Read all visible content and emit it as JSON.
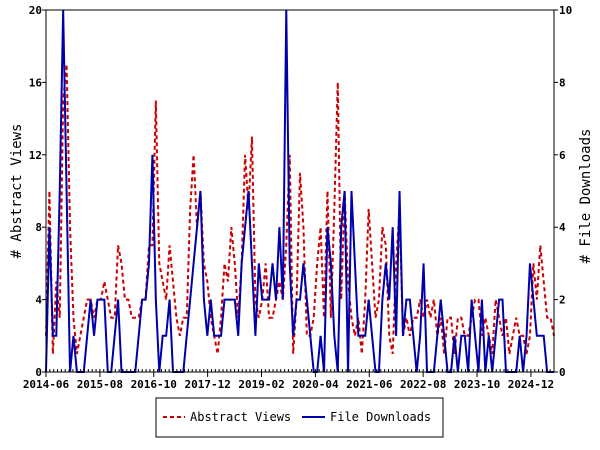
{
  "chart_data": {
    "type": "line",
    "x_tick_labels": [
      "2014-06",
      "2015-08",
      "2016-10",
      "2017-12",
      "2019-02",
      "2020-04",
      "2021-06",
      "2022-08",
      "2023-10",
      "2024-12"
    ],
    "x_range": [
      "2014-06",
      "2025-06"
    ],
    "y_left": {
      "label": "# Abstract Views",
      "range": [
        0,
        20
      ],
      "ticks": [
        0,
        4,
        8,
        12,
        16,
        20
      ]
    },
    "y_right": {
      "label": "# File Downloads",
      "range": [
        0,
        10
      ],
      "ticks": [
        0,
        2,
        4,
        6,
        8,
        10
      ]
    },
    "colors": {
      "abstract_views": "#cc0000",
      "file_downloads": "#0000aa"
    },
    "legend_position": "bottom-center",
    "series": [
      {
        "name": "Abstract Views",
        "axis": "left",
        "style": "dashed",
        "values": [
          2,
          10,
          1,
          5,
          3,
          15,
          17,
          8,
          3,
          1,
          2,
          3,
          4,
          4,
          3,
          4,
          4,
          5,
          4,
          3,
          3,
          7,
          6,
          4,
          4,
          3,
          3,
          3,
          4,
          4,
          7,
          7,
          15,
          6,
          5,
          4,
          7,
          5,
          3,
          2,
          3,
          3,
          9,
          12,
          8,
          10,
          6,
          5,
          3,
          2,
          1,
          3,
          6,
          5,
          8,
          6,
          3,
          6,
          12,
          9,
          13,
          4,
          3,
          4,
          6,
          3,
          3,
          4,
          5,
          4,
          7,
          12,
          1,
          4,
          11,
          8,
          2,
          2,
          3,
          6,
          8,
          3,
          10,
          3,
          9,
          16,
          4,
          10,
          5,
          3,
          2,
          3,
          1,
          4,
          9,
          6,
          3,
          4,
          8,
          7,
          2,
          1,
          6,
          9,
          2,
          3,
          2,
          3,
          3,
          4,
          3,
          4,
          3,
          4,
          2,
          3,
          1,
          3,
          3,
          1,
          3,
          3,
          2,
          2,
          3,
          4,
          4,
          2,
          3,
          2,
          1,
          4,
          3,
          2,
          3,
          1,
          2,
          3,
          2,
          2,
          1,
          2,
          6,
          4,
          7,
          5,
          3,
          3,
          2
        ]
      },
      {
        "name": "File Downloads",
        "axis": "right",
        "style": "solid",
        "values": [
          0,
          4,
          1,
          1,
          5,
          10,
          5,
          0,
          1,
          0,
          0,
          0,
          1,
          2,
          1,
          2,
          2,
          2,
          0,
          0,
          1,
          2,
          0,
          0,
          0,
          0,
          0,
          1,
          2,
          2,
          3,
          6,
          2,
          0,
          1,
          1,
          2,
          0,
          0,
          0,
          0,
          1,
          2,
          3,
          4,
          5,
          2,
          1,
          2,
          1,
          1,
          1,
          2,
          2,
          2,
          2,
          1,
          3,
          4,
          5,
          3,
          1,
          3,
          2,
          2,
          2,
          3,
          2,
          4,
          2,
          10,
          3,
          1,
          2,
          2,
          3,
          2,
          1,
          0,
          0,
          1,
          0,
          4,
          3,
          1,
          0,
          4,
          5,
          0,
          5,
          3,
          1,
          1,
          1,
          2,
          1,
          0,
          0,
          2,
          3,
          2,
          4,
          1,
          5,
          1,
          2,
          2,
          1,
          0,
          1,
          3,
          0,
          0,
          0,
          1,
          2,
          1,
          0,
          0,
          1,
          0,
          1,
          1,
          0,
          2,
          1,
          0,
          2,
          0,
          1,
          0,
          1,
          2,
          2,
          0,
          0,
          0,
          0,
          1,
          0,
          1,
          3,
          2,
          1,
          1,
          1,
          0,
          0,
          0
        ]
      }
    ]
  },
  "legend": {
    "abstract_views_label": "Abstract Views",
    "file_downloads_label": "File Downloads"
  }
}
